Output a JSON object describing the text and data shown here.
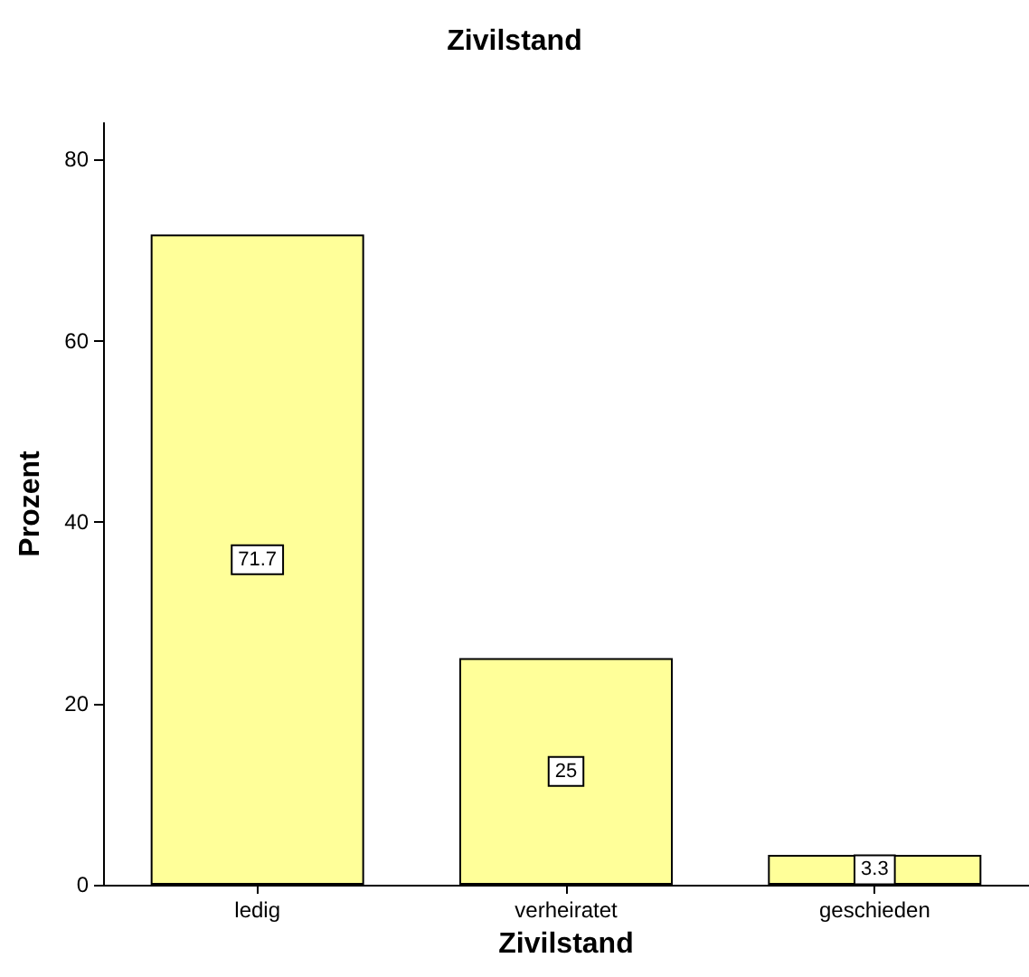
{
  "chart_data": {
    "type": "bar",
    "title": "Zivilstand",
    "xlabel": "Zivilstand",
    "ylabel": "Prozent",
    "categories": [
      "ledig",
      "verheiratet",
      "geschieden"
    ],
    "values": [
      71.7,
      25,
      3.3
    ],
    "color": "#ffff99",
    "ylim": [
      0,
      84
    ],
    "yticks": [
      0,
      20,
      40,
      60,
      80
    ],
    "grid": false,
    "data_labels": true
  }
}
